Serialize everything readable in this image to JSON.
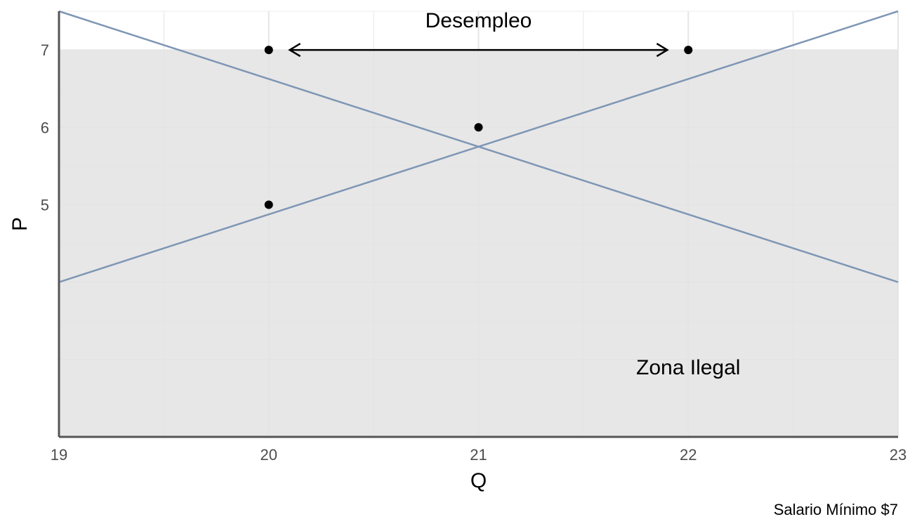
{
  "chart_data": {
    "type": "line",
    "title": "",
    "xlabel": "Q",
    "ylabel": "P",
    "caption": "Salario Mínimo $7",
    "xlim": [
      19,
      23
    ],
    "ylim": [
      2,
      7.5
    ],
    "x_ticks": [
      19,
      20,
      21,
      22,
      23
    ],
    "y_ticks": [
      5,
      6,
      7
    ],
    "grid": true,
    "series": [
      {
        "x": [
          19,
          23
        ],
        "y": [
          7.5,
          4
        ],
        "color": "#7f96b5"
      },
      {
        "x": [
          19,
          23
        ],
        "y": [
          4,
          7.5
        ],
        "color": "#7f96b5"
      }
    ],
    "points": [
      {
        "x": 20,
        "y": 7
      },
      {
        "x": 22,
        "y": 7
      },
      {
        "x": 21,
        "y": 6
      },
      {
        "x": 20,
        "y": 5
      }
    ],
    "shaded_region": {
      "y_max": 7,
      "label": "Zona Ilegal",
      "label_x": 22,
      "label_y": 2.9,
      "color": "#e3e3e3"
    },
    "annotations": [
      {
        "text": "Desempleo",
        "x": 21,
        "y": 7.5,
        "arrow_from": [
          20.1,
          7
        ],
        "arrow_to": [
          21.9,
          7
        ]
      }
    ]
  }
}
